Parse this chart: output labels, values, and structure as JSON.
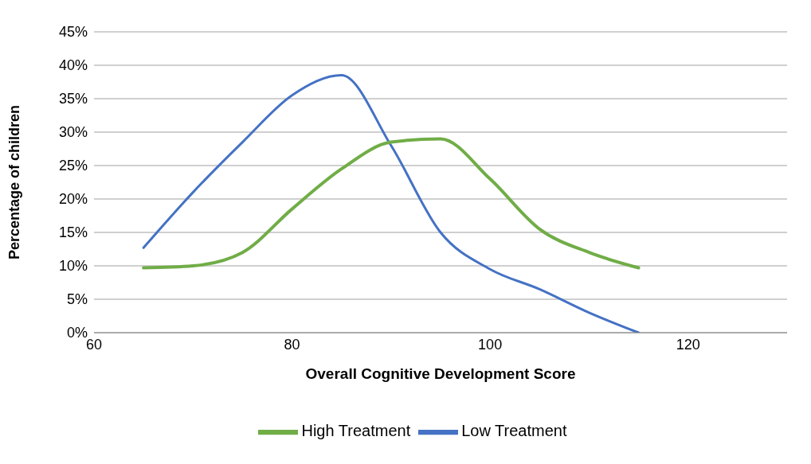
{
  "chart_data": {
    "type": "line",
    "xlabel": "Overall Cognitive Development Score",
    "ylabel": "Percentage of children",
    "x": [
      65,
      70,
      75,
      80,
      85,
      90,
      95,
      100,
      105,
      110,
      115
    ],
    "series": [
      {
        "name": "Low Treatment",
        "color": "#4472c4",
        "values": [
          12.7,
          21,
          28.5,
          35.5,
          38.5,
          28,
          15,
          9.5,
          6.5,
          3,
          0
        ]
      },
      {
        "name": "High Treatment",
        "color": "#70ad47",
        "values": [
          9.7,
          10,
          12,
          18.5,
          24.5,
          28.5,
          29,
          23,
          15.5,
          12,
          9.7
        ]
      }
    ],
    "xlim": [
      60,
      130
    ],
    "xticks": [
      60,
      80,
      100,
      120
    ],
    "ylim": [
      0,
      45
    ],
    "yticks": [
      {
        "value": 0,
        "label": "0%"
      },
      {
        "value": 5,
        "label": "5%"
      },
      {
        "value": 10,
        "label": "10%"
      },
      {
        "value": 15,
        "label": "15%"
      },
      {
        "value": 20,
        "label": "20%"
      },
      {
        "value": 25,
        "label": "25%"
      },
      {
        "value": 30,
        "label": "30%"
      },
      {
        "value": 35,
        "label": "35%"
      },
      {
        "value": 40,
        "label": "40%"
      },
      {
        "value": 45,
        "label": "45%"
      }
    ],
    "grid": "y",
    "legend": "bottom",
    "marker": "none",
    "line_style": "solid"
  }
}
